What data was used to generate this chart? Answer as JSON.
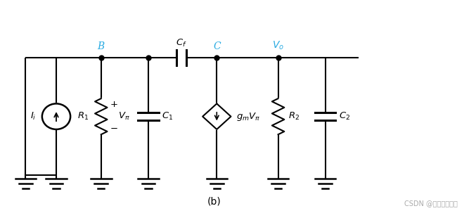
{
  "bg_color": "#ffffff",
  "line_color": "#000000",
  "cyan_color": "#29abe2",
  "fig_width": 6.77,
  "fig_height": 3.1,
  "label_b": "B",
  "label_c": "C",
  "label_vo": "$V_o$",
  "label_cf": "$C_f$",
  "label_ii": "$I_i$",
  "label_r1": "$R_1$",
  "label_vpi": "$V_\\pi$",
  "label_c1": "$C_1$",
  "label_gmvpi": "$g_m V_\\pi$",
  "label_r2": "$R_2$",
  "label_c2": "$C_2$",
  "label_caption": "(b)",
  "label_watermark": "CSDN @爱寂小的时光"
}
